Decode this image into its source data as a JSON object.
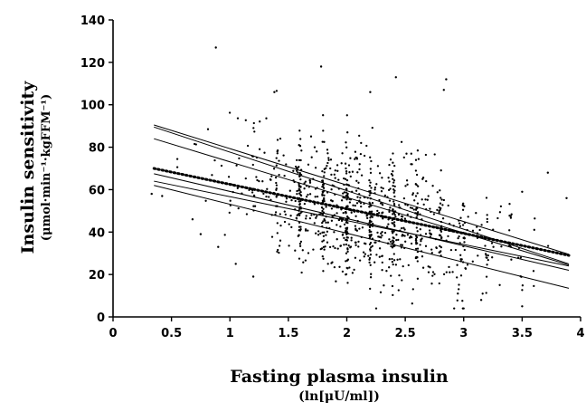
{
  "chart_data": {
    "type": "scatter",
    "title": "",
    "xlabel": "Fasting plasma insulin",
    "xlabel_unit": "(ln[μU/ml])",
    "ylabel": "Insulin sensitivity",
    "ylabel_unit": "(μmol·min⁻¹·kgFFM⁻¹)",
    "xlim": [
      0,
      4
    ],
    "ylim": [
      0,
      140
    ],
    "x_ticks": [
      "0",
      "0.5",
      "1",
      "1.5",
      "2",
      "2.5",
      "3",
      "3.5",
      "4"
    ],
    "y_ticks": [
      "0",
      "20",
      "40",
      "60",
      "80",
      "100",
      "120",
      "140"
    ],
    "grid": false,
    "marker_color": "#000000",
    "regression_lines": [
      {
        "style": "solid",
        "x": [
          0.35,
          3.9
        ],
        "y": [
          90.5,
          29.5
        ]
      },
      {
        "style": "solid",
        "x": [
          0.35,
          3.9
        ],
        "y": [
          84.0,
          24.5
        ]
      },
      {
        "style": "dotted",
        "x": [
          0.35,
          3.9
        ],
        "y": [
          70.0,
          29.0
        ]
      },
      {
        "style": "solid",
        "x": [
          0.35,
          3.9
        ],
        "y": [
          67.5,
          22.0
        ]
      },
      {
        "style": "solid",
        "x": [
          0.35,
          3.9
        ],
        "y": [
          64.0,
          24.0
        ]
      },
      {
        "style": "solid",
        "x": [
          0.35,
          3.9
        ],
        "y": [
          62.0,
          13.5
        ]
      },
      {
        "style": "solid",
        "x": [
          0.35,
          3.9
        ],
        "y": [
          89.5,
          25.0
        ]
      }
    ],
    "point_generation": {
      "n": 1000,
      "seed": 7,
      "x_mean": 2.15,
      "x_sd": 0.52,
      "x_min": 0.55,
      "x_max": 3.9,
      "intercept": 78,
      "slope": -13.8,
      "noise_sd": 15,
      "y_min": 4,
      "y_max": 128
    },
    "outliers": [
      {
        "x": 0.88,
        "y": 127
      },
      {
        "x": 1.78,
        "y": 118
      },
      {
        "x": 2.42,
        "y": 113
      },
      {
        "x": 2.85,
        "y": 112
      },
      {
        "x": 2.83,
        "y": 107
      },
      {
        "x": 1.38,
        "y": 106
      },
      {
        "x": 2.2,
        "y": 106
      },
      {
        "x": 3.5,
        "y": 5
      },
      {
        "x": 3.88,
        "y": 56
      },
      {
        "x": 3.5,
        "y": 59
      },
      {
        "x": 3.72,
        "y": 68
      },
      {
        "x": 0.68,
        "y": 46
      },
      {
        "x": 0.75,
        "y": 39
      },
      {
        "x": 0.9,
        "y": 33
      },
      {
        "x": 1.05,
        "y": 25
      },
      {
        "x": 1.2,
        "y": 19
      },
      {
        "x": 0.42,
        "y": 57
      },
      {
        "x": 0.33,
        "y": 58
      },
      {
        "x": 3.15,
        "y": 8
      },
      {
        "x": 2.95,
        "y": 11
      }
    ]
  }
}
